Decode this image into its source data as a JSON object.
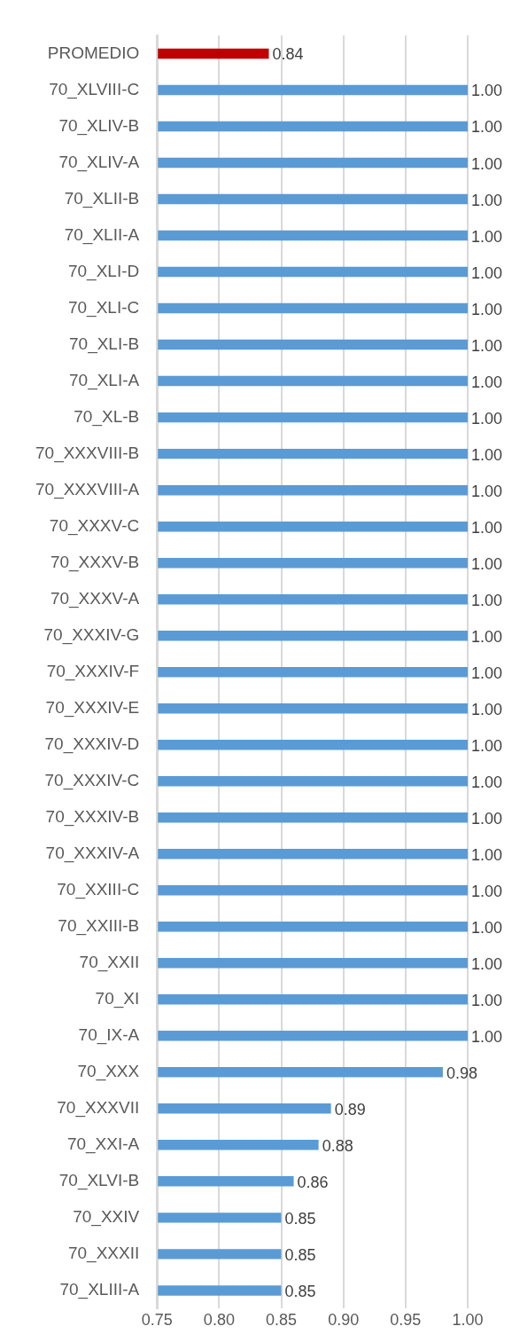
{
  "chart_data": {
    "type": "bar",
    "orientation": "horizontal",
    "categories": [
      "PROMEDIO",
      "70_XLVIII-C",
      "70_XLIV-B",
      "70_XLIV-A",
      "70_XLII-B",
      "70_XLII-A",
      "70_XLI-D",
      "70_XLI-C",
      "70_XLI-B",
      "70_XLI-A",
      "70_XL-B",
      "70_XXXVIII-B",
      "70_XXXVIII-A",
      "70_XXXV-C",
      "70_XXXV-B",
      "70_XXXV-A",
      "70_XXXIV-G",
      "70_XXXIV-F",
      "70_XXXIV-E",
      "70_XXXIV-D",
      "70_XXXIV-C",
      "70_XXXIV-B",
      "70_XXXIV-A",
      "70_XXIII-C",
      "70_XXIII-B",
      "70_XXII",
      "70_XI",
      "70_IX-A",
      "70_XXX",
      "70_XXXVII",
      "70_XXI-A",
      "70_XLVI-B",
      "70_XXIV",
      "70_XXXII",
      "70_XLIII-A"
    ],
    "values": [
      0.84,
      1.0,
      1.0,
      1.0,
      1.0,
      1.0,
      1.0,
      1.0,
      1.0,
      1.0,
      1.0,
      1.0,
      1.0,
      1.0,
      1.0,
      1.0,
      1.0,
      1.0,
      1.0,
      1.0,
      1.0,
      1.0,
      1.0,
      1.0,
      1.0,
      1.0,
      1.0,
      1.0,
      0.98,
      0.89,
      0.88,
      0.86,
      0.85,
      0.85,
      0.85
    ],
    "colors": [
      "#c00000",
      "#5b9bd5",
      "#5b9bd5",
      "#5b9bd5",
      "#5b9bd5",
      "#5b9bd5",
      "#5b9bd5",
      "#5b9bd5",
      "#5b9bd5",
      "#5b9bd5",
      "#5b9bd5",
      "#5b9bd5",
      "#5b9bd5",
      "#5b9bd5",
      "#5b9bd5",
      "#5b9bd5",
      "#5b9bd5",
      "#5b9bd5",
      "#5b9bd5",
      "#5b9bd5",
      "#5b9bd5",
      "#5b9bd5",
      "#5b9bd5",
      "#5b9bd5",
      "#5b9bd5",
      "#5b9bd5",
      "#5b9bd5",
      "#5b9bd5",
      "#5b9bd5",
      "#5b9bd5",
      "#5b9bd5",
      "#5b9bd5",
      "#5b9bd5",
      "#5b9bd5",
      "#5b9bd5"
    ],
    "xlim": [
      0.75,
      1.0
    ],
    "value_labels": [
      "0.84",
      "1.00",
      "1.00",
      "1.00",
      "1.00",
      "1.00",
      "1.00",
      "1.00",
      "1.00",
      "1.00",
      "1.00",
      "1.00",
      "1.00",
      "1.00",
      "1.00",
      "1.00",
      "1.00",
      "1.00",
      "1.00",
      "1.00",
      "1.00",
      "1.00",
      "1.00",
      "1.00",
      "1.00",
      "1.00",
      "1.00",
      "1.00",
      "0.98",
      "0.89",
      "0.88",
      "0.86",
      "0.85",
      "0.85",
      "0.85"
    ],
    "xticks": [
      {
        "value": 0.75,
        "label": "0.75"
      },
      {
        "value": 0.8,
        "label": "0.80"
      },
      {
        "value": 0.85,
        "label": "0.85"
      },
      {
        "value": 0.9,
        "label": "0.90"
      },
      {
        "value": 0.95,
        "label": "0.95"
      },
      {
        "value": 1.0,
        "label": "1.00"
      }
    ],
    "grid": "x",
    "legend": false
  }
}
